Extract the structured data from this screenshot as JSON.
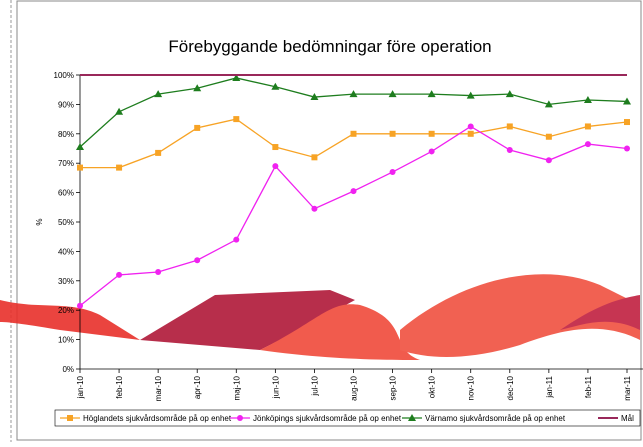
{
  "chart_data": {
    "type": "line",
    "title": "Förebyggande bedömningar före operation",
    "y_label": "%",
    "categories": [
      "jan-10",
      "feb-10",
      "mar-10",
      "apr-10",
      "maj-10",
      "jun-10",
      "jul-10",
      "aug-10",
      "sep-10",
      "okt-10",
      "nov-10",
      "dec-10",
      "jan-11",
      "feb-11",
      "mar-11"
    ],
    "series": [
      {
        "name": "Höglandets sjukvårdsområde på op enhet",
        "color": "#f7a325",
        "marker": "square",
        "values": [
          68.5,
          68.5,
          73.5,
          82,
          85,
          75.5,
          72,
          80,
          80,
          80,
          80,
          82.5,
          79,
          82.5,
          84
        ]
      },
      {
        "name": "Jönköpings sjukvårdsområde på op enhet",
        "color": "#f022f0",
        "marker": "circle",
        "values": [
          21.5,
          32,
          33,
          37,
          44,
          69,
          54.5,
          60.5,
          67,
          74,
          82.5,
          74.5,
          71,
          76.5,
          75
        ]
      },
      {
        "name": "Värnamo sjukvårdsområde på op enhet",
        "color": "#1e7d1e",
        "marker": "triangle",
        "values": [
          75.5,
          87.5,
          93.5,
          95.5,
          99,
          96,
          92.5,
          93.5,
          93.5,
          93.5,
          93,
          93.5,
          90,
          91.5,
          91
        ]
      },
      {
        "name": "Mål",
        "color": "#99285a",
        "marker": "none",
        "values": [
          100,
          100,
          100,
          100,
          100,
          100,
          100,
          100,
          100,
          100,
          100,
          100,
          100,
          100,
          100
        ]
      }
    ],
    "ylim": [
      0,
      100
    ],
    "yticks": [
      {
        "value": 0,
        "label": "0%"
      },
      {
        "value": 10,
        "label": "10%"
      },
      {
        "value": 20,
        "label": "20%"
      },
      {
        "value": 30,
        "label": "30%"
      },
      {
        "value": 40,
        "label": "40%"
      },
      {
        "value": 50,
        "label": "50%"
      },
      {
        "value": 60,
        "label": "60%"
      },
      {
        "value": 70,
        "label": "70%"
      },
      {
        "value": 80,
        "label": "80%"
      },
      {
        "value": 90,
        "label": "90%"
      },
      {
        "value": 100,
        "label": "100%"
      }
    ]
  }
}
